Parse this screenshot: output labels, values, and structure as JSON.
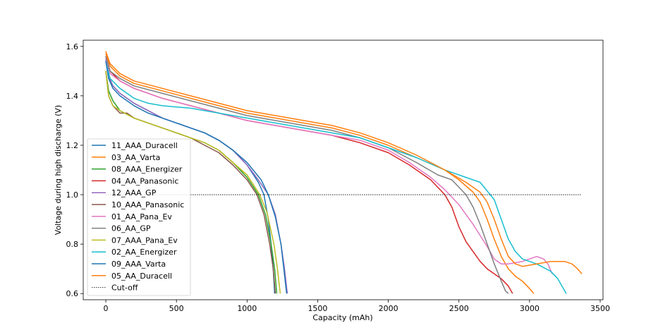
{
  "chart_data": {
    "type": "line",
    "xlabel": "Capacity (mAh)",
    "ylabel": "Voltage during high discharge (V)",
    "xlim": [
      -160,
      3520
    ],
    "ylim": [
      0.575,
      1.625
    ],
    "xticks": [
      0,
      500,
      1000,
      1500,
      2000,
      2500,
      3000,
      3500
    ],
    "yticks": [
      0.6,
      0.8,
      1.0,
      1.2,
      1.4,
      1.6
    ],
    "ytick_labels": [
      "0.6",
      "0.8",
      "1.0",
      "1.2",
      "1.4",
      "1.6"
    ],
    "legend_position": "lower-left",
    "grid": false,
    "series": [
      {
        "name": "11_AAA_Duracell",
        "color": "#1f77b4",
        "points": [
          [
            0,
            1.55
          ],
          [
            20,
            1.48
          ],
          [
            50,
            1.44
          ],
          [
            100,
            1.41
          ],
          [
            200,
            1.37
          ],
          [
            300,
            1.34
          ],
          [
            400,
            1.31
          ],
          [
            500,
            1.29
          ],
          [
            600,
            1.27
          ],
          [
            700,
            1.25
          ],
          [
            800,
            1.22
          ],
          [
            900,
            1.18
          ],
          [
            1000,
            1.12
          ],
          [
            1080,
            1.05
          ],
          [
            1120,
            1.0
          ],
          [
            1150,
            0.9
          ],
          [
            1170,
            0.8
          ],
          [
            1185,
            0.7
          ],
          [
            1195,
            0.6
          ]
        ]
      },
      {
        "name": "03_AA_Varta",
        "color": "#ff7f0e",
        "points": [
          [
            0,
            1.57
          ],
          [
            30,
            1.52
          ],
          [
            100,
            1.48
          ],
          [
            200,
            1.45
          ],
          [
            400,
            1.42
          ],
          [
            600,
            1.39
          ],
          [
            800,
            1.36
          ],
          [
            1000,
            1.33
          ],
          [
            1200,
            1.31
          ],
          [
            1400,
            1.29
          ],
          [
            1600,
            1.27
          ],
          [
            1800,
            1.24
          ],
          [
            2000,
            1.2
          ],
          [
            2200,
            1.15
          ],
          [
            2400,
            1.1
          ],
          [
            2500,
            1.06
          ],
          [
            2600,
            1.01
          ],
          [
            2650,
            0.97
          ],
          [
            2700,
            0.9
          ],
          [
            2750,
            0.82
          ],
          [
            2800,
            0.75
          ],
          [
            2850,
            0.7
          ],
          [
            2900,
            0.67
          ],
          [
            2950,
            0.65
          ],
          [
            3000,
            0.62
          ],
          [
            3030,
            0.6
          ]
        ]
      },
      {
        "name": "08_AAA_Energizer",
        "color": "#2ca02c",
        "points": [
          [
            0,
            1.5
          ],
          [
            20,
            1.42
          ],
          [
            50,
            1.38
          ],
          [
            100,
            1.34
          ],
          [
            200,
            1.31
          ],
          [
            300,
            1.29
          ],
          [
            400,
            1.27
          ],
          [
            500,
            1.25
          ],
          [
            600,
            1.23
          ],
          [
            700,
            1.21
          ],
          [
            800,
            1.18
          ],
          [
            900,
            1.13
          ],
          [
            1000,
            1.07
          ],
          [
            1080,
            1.0
          ],
          [
            1130,
            0.92
          ],
          [
            1170,
            0.8
          ],
          [
            1195,
            0.7
          ],
          [
            1210,
            0.6
          ]
        ]
      },
      {
        "name": "04_AA_Panasonic",
        "color": "#d62728",
        "points": [
          [
            0,
            1.56
          ],
          [
            30,
            1.5
          ],
          [
            100,
            1.46
          ],
          [
            200,
            1.43
          ],
          [
            400,
            1.39
          ],
          [
            600,
            1.36
          ],
          [
            800,
            1.33
          ],
          [
            1000,
            1.3
          ],
          [
            1200,
            1.28
          ],
          [
            1400,
            1.26
          ],
          [
            1600,
            1.24
          ],
          [
            1800,
            1.21
          ],
          [
            2000,
            1.17
          ],
          [
            2150,
            1.12
          ],
          [
            2300,
            1.06
          ],
          [
            2400,
            1.0
          ],
          [
            2450,
            0.95
          ],
          [
            2500,
            0.87
          ],
          [
            2550,
            0.81
          ],
          [
            2600,
            0.77
          ],
          [
            2650,
            0.73
          ],
          [
            2700,
            0.7
          ],
          [
            2750,
            0.68
          ],
          [
            2800,
            0.66
          ],
          [
            2850,
            0.63
          ],
          [
            2880,
            0.6
          ]
        ]
      },
      {
        "name": "12_AAA_GP",
        "color": "#9467bd",
        "points": [
          [
            0,
            1.55
          ],
          [
            20,
            1.48
          ],
          [
            50,
            1.44
          ],
          [
            100,
            1.41
          ],
          [
            200,
            1.37
          ],
          [
            300,
            1.34
          ],
          [
            400,
            1.31
          ],
          [
            500,
            1.29
          ],
          [
            600,
            1.27
          ],
          [
            700,
            1.25
          ],
          [
            800,
            1.22
          ],
          [
            900,
            1.18
          ],
          [
            1000,
            1.12
          ],
          [
            1080,
            1.06
          ],
          [
            1150,
            1.0
          ],
          [
            1200,
            0.92
          ],
          [
            1240,
            0.8
          ],
          [
            1265,
            0.7
          ],
          [
            1285,
            0.6
          ]
        ]
      },
      {
        "name": "10_AAA_Panasonic",
        "color": "#8c564b",
        "points": [
          [
            0,
            1.5
          ],
          [
            20,
            1.4
          ],
          [
            50,
            1.36
          ],
          [
            100,
            1.33
          ],
          [
            150,
            1.33
          ],
          [
            200,
            1.31
          ],
          [
            300,
            1.29
          ],
          [
            400,
            1.27
          ],
          [
            500,
            1.25
          ],
          [
            600,
            1.23
          ],
          [
            700,
            1.2
          ],
          [
            800,
            1.17
          ],
          [
            900,
            1.12
          ],
          [
            1000,
            1.06
          ],
          [
            1070,
            1.0
          ],
          [
            1120,
            0.92
          ],
          [
            1160,
            0.8
          ],
          [
            1185,
            0.7
          ],
          [
            1200,
            0.6
          ]
        ]
      },
      {
        "name": "01_AA_Pana_Ev",
        "color": "#e377c2",
        "points": [
          [
            0,
            1.55
          ],
          [
            30,
            1.49
          ],
          [
            100,
            1.46
          ],
          [
            200,
            1.43
          ],
          [
            400,
            1.39
          ],
          [
            600,
            1.36
          ],
          [
            800,
            1.33
          ],
          [
            1000,
            1.3
          ],
          [
            1200,
            1.28
          ],
          [
            1400,
            1.26
          ],
          [
            1600,
            1.24
          ],
          [
            1800,
            1.22
          ],
          [
            2000,
            1.18
          ],
          [
            2150,
            1.13
          ],
          [
            2300,
            1.07
          ],
          [
            2400,
            1.02
          ],
          [
            2500,
            0.96
          ],
          [
            2600,
            0.88
          ],
          [
            2700,
            0.79
          ],
          [
            2750,
            0.74
          ],
          [
            2800,
            0.72
          ],
          [
            2850,
            0.72
          ],
          [
            2950,
            0.73
          ],
          [
            3050,
            0.75
          ],
          [
            3100,
            0.74
          ],
          [
            3130,
            0.72
          ],
          [
            3160,
            0.68
          ]
        ]
      },
      {
        "name": "06_AA_GP",
        "color": "#7f7f7f",
        "points": [
          [
            0,
            1.56
          ],
          [
            30,
            1.5
          ],
          [
            100,
            1.47
          ],
          [
            200,
            1.44
          ],
          [
            400,
            1.41
          ],
          [
            600,
            1.38
          ],
          [
            800,
            1.35
          ],
          [
            1000,
            1.32
          ],
          [
            1200,
            1.3
          ],
          [
            1400,
            1.28
          ],
          [
            1600,
            1.26
          ],
          [
            1800,
            1.23
          ],
          [
            2000,
            1.19
          ],
          [
            2200,
            1.13
          ],
          [
            2350,
            1.08
          ],
          [
            2450,
            1.06
          ],
          [
            2550,
            1.0
          ],
          [
            2600,
            0.95
          ],
          [
            2650,
            0.88
          ],
          [
            2700,
            0.8
          ],
          [
            2750,
            0.72
          ],
          [
            2800,
            0.65
          ],
          [
            2830,
            0.61
          ],
          [
            2850,
            0.6
          ]
        ]
      },
      {
        "name": "07_AAA_Pana_Ev",
        "color": "#bcbd22",
        "points": [
          [
            0,
            1.5
          ],
          [
            20,
            1.4
          ],
          [
            50,
            1.36
          ],
          [
            100,
            1.34
          ],
          [
            200,
            1.31
          ],
          [
            300,
            1.29
          ],
          [
            400,
            1.27
          ],
          [
            500,
            1.25
          ],
          [
            600,
            1.23
          ],
          [
            700,
            1.21
          ],
          [
            800,
            1.18
          ],
          [
            900,
            1.13
          ],
          [
            1000,
            1.08
          ],
          [
            1090,
            1.0
          ],
          [
            1140,
            0.93
          ],
          [
            1190,
            0.8
          ],
          [
            1215,
            0.7
          ],
          [
            1235,
            0.6
          ]
        ]
      },
      {
        "name": "02_AA_Energizer",
        "color": "#17becf",
        "points": [
          [
            0,
            1.54
          ],
          [
            30,
            1.47
          ],
          [
            100,
            1.43
          ],
          [
            200,
            1.39
          ],
          [
            300,
            1.37
          ],
          [
            400,
            1.36
          ],
          [
            600,
            1.35
          ],
          [
            800,
            1.33
          ],
          [
            1000,
            1.31
          ],
          [
            1200,
            1.29
          ],
          [
            1400,
            1.27
          ],
          [
            1600,
            1.25
          ],
          [
            1800,
            1.23
          ],
          [
            2000,
            1.19
          ],
          [
            2200,
            1.15
          ],
          [
            2400,
            1.1
          ],
          [
            2550,
            1.07
          ],
          [
            2650,
            1.05
          ],
          [
            2750,
            0.98
          ],
          [
            2800,
            0.9
          ],
          [
            2850,
            0.82
          ],
          [
            2900,
            0.77
          ],
          [
            2950,
            0.74
          ],
          [
            3050,
            0.72
          ],
          [
            3150,
            0.69
          ],
          [
            3200,
            0.66
          ],
          [
            3260,
            0.6
          ]
        ]
      },
      {
        "name": "09_AAA_Varta",
        "color": "#1f77b4",
        "points": [
          [
            0,
            1.54
          ],
          [
            20,
            1.47
          ],
          [
            50,
            1.43
          ],
          [
            100,
            1.4
          ],
          [
            200,
            1.36
          ],
          [
            300,
            1.33
          ],
          [
            400,
            1.31
          ],
          [
            500,
            1.29
          ],
          [
            600,
            1.27
          ],
          [
            700,
            1.25
          ],
          [
            800,
            1.22
          ],
          [
            900,
            1.18
          ],
          [
            1000,
            1.13
          ],
          [
            1100,
            1.06
          ],
          [
            1150,
            1.0
          ],
          [
            1200,
            0.91
          ],
          [
            1240,
            0.8
          ],
          [
            1260,
            0.7
          ],
          [
            1280,
            0.6
          ]
        ]
      },
      {
        "name": "05_AA_Duracell",
        "color": "#ff7f0e",
        "points": [
          [
            0,
            1.58
          ],
          [
            30,
            1.53
          ],
          [
            100,
            1.49
          ],
          [
            200,
            1.46
          ],
          [
            400,
            1.43
          ],
          [
            600,
            1.4
          ],
          [
            800,
            1.37
          ],
          [
            1000,
            1.34
          ],
          [
            1200,
            1.32
          ],
          [
            1400,
            1.3
          ],
          [
            1600,
            1.28
          ],
          [
            1800,
            1.25
          ],
          [
            2000,
            1.21
          ],
          [
            2200,
            1.16
          ],
          [
            2400,
            1.1
          ],
          [
            2550,
            1.05
          ],
          [
            2650,
            1.01
          ],
          [
            2700,
            0.97
          ],
          [
            2750,
            0.9
          ],
          [
            2800,
            0.82
          ],
          [
            2850,
            0.75
          ],
          [
            2900,
            0.72
          ],
          [
            2950,
            0.71
          ],
          [
            3050,
            0.72
          ],
          [
            3150,
            0.73
          ],
          [
            3250,
            0.73
          ],
          [
            3300,
            0.72
          ],
          [
            3340,
            0.7
          ],
          [
            3370,
            0.68
          ]
        ]
      }
    ],
    "cutoff": {
      "name": "Cut-off",
      "color": "#000000",
      "y": 1.0,
      "x_range": [
        0,
        3370
      ]
    }
  }
}
